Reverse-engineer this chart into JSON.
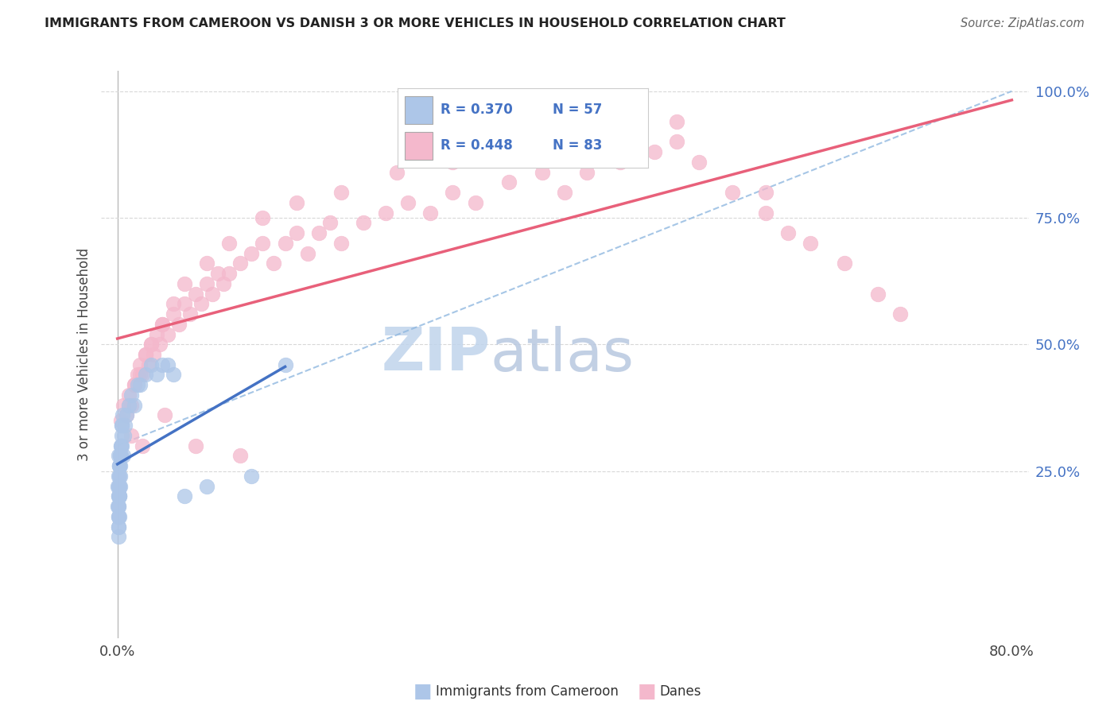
{
  "title": "IMMIGRANTS FROM CAMEROON VS DANISH 3 OR MORE VEHICLES IN HOUSEHOLD CORRELATION CHART",
  "source": "Source: ZipAtlas.com",
  "ylabel": "3 or more Vehicles in Household",
  "r_blue": "R = 0.370",
  "n_blue": "N = 57",
  "r_pink": "R = 0.448",
  "n_pink": "N = 83",
  "legend_blue_label": "Immigrants from Cameroon",
  "legend_pink_label": "Danes",
  "blue_fill": "#adc6e8",
  "pink_fill": "#f4b8cc",
  "blue_line": "#4472c4",
  "pink_line": "#e8607a",
  "dash_line": "#90b8e0",
  "rn_color": "#4472c4",
  "watermark_zip_color": "#c0d4ec",
  "watermark_atlas_color": "#b8c8e0",
  "grid_color": "#d8d8d8",
  "title_color": "#222222",
  "axis_label_color": "#444444",
  "right_tick_color": "#4472c4",
  "xmin": 0.0,
  "xmax": 80.0,
  "ymin": 0.0,
  "ymax": 100.0,
  "ytick_vals": [
    25.0,
    50.0,
    75.0,
    100.0
  ],
  "ytick_labels": [
    "25.0%",
    "50.0%",
    "75.0%",
    "100.0%"
  ],
  "xtick_vals": [
    0.0,
    80.0
  ],
  "xtick_labels": [
    "0.0%",
    "80.0%"
  ],
  "blue_x": [
    0.05,
    0.06,
    0.07,
    0.08,
    0.09,
    0.1,
    0.1,
    0.11,
    0.12,
    0.13,
    0.14,
    0.15,
    0.16,
    0.17,
    0.18,
    0.19,
    0.2,
    0.21,
    0.22,
    0.23,
    0.25,
    0.27,
    0.3,
    0.32,
    0.35,
    0.38,
    0.4,
    0.45,
    0.5,
    0.6,
    0.7,
    0.8,
    1.0,
    1.2,
    1.5,
    2.0,
    2.5,
    3.0,
    3.5,
    4.0,
    4.5,
    5.0,
    0.08,
    0.09,
    0.11,
    0.13,
    0.15,
    0.18,
    0.2,
    0.25,
    0.3,
    0.4,
    1.8,
    6.0,
    8.0,
    12.0,
    15.0
  ],
  "blue_y": [
    22,
    18,
    20,
    16,
    14,
    24,
    28,
    20,
    18,
    22,
    16,
    24,
    20,
    26,
    22,
    20,
    26,
    24,
    28,
    22,
    26,
    28,
    30,
    28,
    32,
    30,
    34,
    36,
    28,
    32,
    34,
    36,
    38,
    40,
    38,
    42,
    44,
    46,
    44,
    46,
    46,
    44,
    12,
    14,
    16,
    18,
    20,
    22,
    26,
    28,
    30,
    34,
    42,
    20,
    22,
    24,
    46
  ],
  "pink_x": [
    0.3,
    0.5,
    0.8,
    1.0,
    1.2,
    1.5,
    1.8,
    2.0,
    2.2,
    2.5,
    2.8,
    3.0,
    3.2,
    3.5,
    3.8,
    4.0,
    4.5,
    5.0,
    5.5,
    6.0,
    6.5,
    7.0,
    7.5,
    8.0,
    8.5,
    9.0,
    9.5,
    10.0,
    11.0,
    12.0,
    13.0,
    14.0,
    15.0,
    16.0,
    17.0,
    18.0,
    19.0,
    20.0,
    22.0,
    24.0,
    26.0,
    28.0,
    30.0,
    32.0,
    35.0,
    38.0,
    40.0,
    42.0,
    45.0,
    48.0,
    50.0,
    52.0,
    55.0,
    58.0,
    60.0,
    62.0,
    65.0,
    68.0,
    70.0,
    1.0,
    1.5,
    2.0,
    2.5,
    3.0,
    4.0,
    5.0,
    6.0,
    8.0,
    10.0,
    13.0,
    16.0,
    20.0,
    25.0,
    30.0,
    36.0,
    42.0,
    50.0,
    58.0,
    1.2,
    2.2,
    4.2,
    7.0,
    11.0
  ],
  "pink_y": [
    35,
    38,
    36,
    40,
    38,
    42,
    44,
    46,
    44,
    48,
    46,
    50,
    48,
    52,
    50,
    54,
    52,
    56,
    54,
    58,
    56,
    60,
    58,
    62,
    60,
    64,
    62,
    64,
    66,
    68,
    70,
    66,
    70,
    72,
    68,
    72,
    74,
    70,
    74,
    76,
    78,
    76,
    80,
    78,
    82,
    84,
    80,
    84,
    86,
    88,
    90,
    86,
    80,
    76,
    72,
    70,
    66,
    60,
    56,
    38,
    42,
    44,
    48,
    50,
    54,
    58,
    62,
    66,
    70,
    75,
    78,
    80,
    84,
    86,
    88,
    90,
    94,
    80,
    32,
    30,
    36,
    30,
    28
  ]
}
